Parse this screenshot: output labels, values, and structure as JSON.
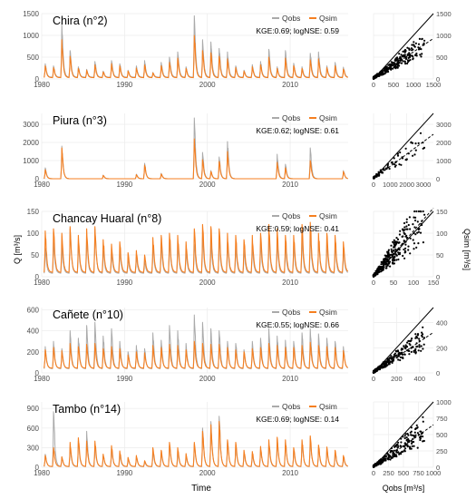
{
  "figure": {
    "xlabel": "Time",
    "ylabel": "Q [m³/s]",
    "scatter_xlabel": "Qobs [m³/s]",
    "scatter_ylabel": "Qsim [m³/s]",
    "legend_labels": [
      "Qobs",
      "Qsim"
    ],
    "colors": {
      "obs": "#aaaaaa",
      "sim": "#f57f20",
      "grid": "#ebebeb",
      "points": "#000000"
    }
  },
  "chart_data": [
    {
      "type": "line",
      "title": "Chira (n°2)",
      "metrics": "KGE:0.69; logNSE: 0.59",
      "x": {
        "start_year": 1980,
        "end_year": 2017,
        "ticks": [
          "1980",
          "1990",
          "2000",
          "2010"
        ]
      },
      "ylim": [
        0,
        1500
      ],
      "yticks": [
        "0",
        "500",
        "1000",
        "1500"
      ],
      "series": [
        {
          "name": "Qobs",
          "annual_peaks": [
            350,
            300,
            1280,
            650,
            280,
            220,
            400,
            180,
            420,
            350,
            200,
            300,
            420,
            150,
            380,
            500,
            620,
            280,
            1450,
            900,
            850,
            700,
            620,
            300,
            200,
            330,
            400,
            680,
            280,
            650,
            360,
            280,
            590,
            620,
            300,
            380,
            270
          ],
          "base": 40
        },
        {
          "name": "Qsim",
          "annual_peaks": [
            300,
            260,
            900,
            520,
            240,
            200,
            320,
            160,
            350,
            300,
            180,
            250,
            320,
            140,
            300,
            380,
            480,
            240,
            1000,
            650,
            600,
            520,
            460,
            260,
            180,
            280,
            320,
            500,
            240,
            480,
            300,
            240,
            440,
            460,
            260,
            300,
            230
          ],
          "base": 30
        }
      ],
      "scatter": {
        "range": [
          0,
          1500
        ],
        "ticks": [
          "0",
          "500",
          "1000",
          "1500"
        ],
        "fit_slope": 0.62,
        "spread": 0.35,
        "n_points": 300
      }
    },
    {
      "type": "line",
      "title": "Piura (n°3)",
      "metrics": "KGE:0.62; logNSE: 0.61",
      "x": {
        "start_year": 1980,
        "end_year": 2017,
        "ticks": [
          "1980",
          "1990",
          "2000",
          "2010"
        ]
      },
      "ylim": [
        0,
        3600
      ],
      "yticks": [
        "0",
        "1000",
        "2000",
        "3000"
      ],
      "series": [
        {
          "name": "Qobs",
          "annual_peaks": [
            600,
            0,
            1800,
            0,
            0,
            0,
            0,
            200,
            0,
            0,
            0,
            250,
            850,
            0,
            300,
            0,
            0,
            0,
            3350,
            1450,
            450,
            1200,
            2050,
            0,
            0,
            0,
            0,
            0,
            1350,
            800,
            0,
            0,
            1700,
            0,
            0,
            0,
            450
          ],
          "base": 0
        },
        {
          "name": "Qsim",
          "annual_peaks": [
            500,
            0,
            1700,
            0,
            0,
            0,
            0,
            180,
            0,
            0,
            0,
            220,
            750,
            0,
            260,
            0,
            0,
            0,
            2200,
            1050,
            400,
            950,
            1500,
            0,
            0,
            0,
            0,
            0,
            900,
            600,
            0,
            0,
            1000,
            0,
            0,
            0,
            400
          ],
          "base": 0
        }
      ],
      "scatter": {
        "range": [
          0,
          3600
        ],
        "ticks": [
          "0",
          "1000",
          "2000",
          "3000"
        ],
        "fit_slope": 0.68,
        "spread": 0.35,
        "n_points": 90
      }
    },
    {
      "type": "line",
      "title": "Chancay Huaral (n°8)",
      "metrics": "KGE:0.59; logNSE: 0.41",
      "x": {
        "start_year": 1980,
        "end_year": 2017,
        "ticks": [
          "1980",
          "1990",
          "2000",
          "2010"
        ]
      },
      "ylim": [
        0,
        150
      ],
      "yticks": [
        "0",
        "50",
        "100",
        "150"
      ],
      "series": [
        {
          "name": "Qobs",
          "annual_peaks": [
            65,
            80,
            70,
            110,
            75,
            90,
            110,
            60,
            55,
            60,
            40,
            45,
            35,
            70,
            75,
            80,
            75,
            60,
            75,
            90,
            80,
            85,
            75,
            70,
            60,
            70,
            75,
            95,
            80,
            70,
            70,
            90,
            95,
            80,
            75,
            70,
            60
          ],
          "base": 8
        },
        {
          "name": "Qsim",
          "annual_peaks": [
            105,
            110,
            100,
            115,
            95,
            110,
            115,
            85,
            75,
            80,
            55,
            60,
            50,
            90,
            95,
            100,
            95,
            80,
            110,
            120,
            115,
            110,
            100,
            95,
            85,
            95,
            100,
            120,
            110,
            95,
            95,
            120,
            125,
            100,
            100,
            95,
            80
          ],
          "base": 10
        }
      ],
      "scatter": {
        "range": [
          0,
          150
        ],
        "ticks": [
          "0",
          "50",
          "100",
          "150"
        ],
        "fit_slope": 1.05,
        "spread": 0.5,
        "n_points": 350
      }
    },
    {
      "type": "line",
      "title": "Cañete (n°10)",
      "metrics": "KGE:0.55; logNSE: 0.66",
      "x": {
        "start_year": 1980,
        "end_year": 2017,
        "ticks": [
          "1980",
          "1990",
          "2000",
          "2010"
        ]
      },
      "ylim": [
        0,
        620
      ],
      "yticks": [
        "0",
        "200",
        "400",
        "600"
      ],
      "series": [
        {
          "name": "Qobs",
          "annual_peaks": [
            250,
            300,
            230,
            400,
            330,
            450,
            480,
            350,
            420,
            300,
            200,
            260,
            230,
            380,
            310,
            450,
            400,
            280,
            550,
            480,
            420,
            400,
            300,
            280,
            220,
            300,
            330,
            420,
            350,
            310,
            300,
            380,
            420,
            370,
            330,
            300,
            250
          ],
          "base": 40
        },
        {
          "name": "Qsim",
          "annual_peaks": [
            220,
            240,
            210,
            280,
            250,
            270,
            280,
            230,
            250,
            230,
            170,
            200,
            190,
            260,
            240,
            270,
            260,
            220,
            300,
            280,
            270,
            270,
            240,
            220,
            200,
            230,
            240,
            280,
            260,
            240,
            240,
            260,
            290,
            260,
            250,
            240,
            210
          ],
          "base": 45
        }
      ],
      "scatter": {
        "range": [
          0,
          520
        ],
        "ticks": [
          "0",
          "200",
          "400"
        ],
        "fit_slope": 0.62,
        "spread": 0.35,
        "n_points": 300
      }
    },
    {
      "type": "line",
      "title": "Tambo (n°14)",
      "metrics": "KGE:0.69; logNSE: 0.14",
      "x": {
        "start_year": 1980,
        "end_year": 2017,
        "ticks": [
          "1980",
          "1990",
          "2000",
          "2010"
        ]
      },
      "ylim": [
        0,
        1000
      ],
      "yticks": [
        "0",
        "300",
        "600",
        "900"
      ],
      "series": [
        {
          "name": "Qobs",
          "annual_peaks": [
            200,
            850,
            160,
            300,
            400,
            550,
            350,
            180,
            300,
            200,
            130,
            160,
            80,
            250,
            220,
            330,
            250,
            180,
            350,
            600,
            700,
            780,
            400,
            350,
            230,
            200,
            280,
            350,
            420,
            380,
            270,
            400,
            450,
            300,
            280,
            220,
            150
          ],
          "base": 10
        },
        {
          "name": "Qsim",
          "annual_peaks": [
            180,
            300,
            160,
            380,
            450,
            400,
            400,
            200,
            330,
            250,
            150,
            180,
            100,
            300,
            260,
            380,
            300,
            210,
            380,
            550,
            650,
            700,
            420,
            380,
            260,
            240,
            320,
            420,
            460,
            420,
            300,
            420,
            480,
            340,
            310,
            260,
            180
          ],
          "base": 12
        }
      ],
      "scatter": {
        "range": [
          0,
          1000
        ],
        "ticks": [
          "0",
          "250",
          "500",
          "750",
          "1000"
        ],
        "fit_slope": 0.65,
        "spread": 0.4,
        "n_points": 250
      }
    }
  ]
}
